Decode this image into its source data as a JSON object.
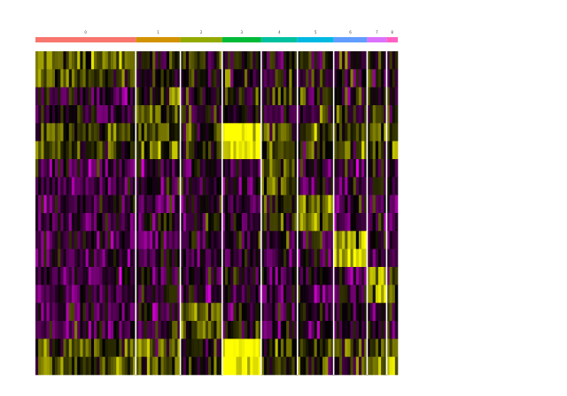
{
  "chart_data": {
    "type": "heatmap",
    "title": "",
    "xlabel": "",
    "ylabel": "",
    "legend": "none",
    "clusters": [
      {
        "label": "0",
        "color": "#F8766D",
        "cells": 36
      },
      {
        "label": "1",
        "color": "#D39200",
        "cells": 16
      },
      {
        "label": "2",
        "color": "#93AA00",
        "cells": 15
      },
      {
        "label": "3",
        "color": "#00BA38",
        "cells": 14
      },
      {
        "label": "4",
        "color": "#00C19F",
        "cells": 13
      },
      {
        "label": "5",
        "color": "#00B9E3",
        "cells": 13
      },
      {
        "label": "6",
        "color": "#619CFF",
        "cells": 12
      },
      {
        "label": "7",
        "color": "#DB72FB",
        "cells": 7
      },
      {
        "label": "8",
        "color": "#FF61C3",
        "cells": 4
      }
    ],
    "genes": [
      "",
      "",
      "",
      "",
      "",
      "",
      "",
      "",
      "",
      "",
      "",
      "",
      "",
      "",
      "",
      "",
      "",
      ""
    ],
    "gene_marker_cluster": [
      0,
      0,
      1,
      1,
      3,
      3,
      4,
      4,
      5,
      5,
      6,
      6,
      7,
      7,
      2,
      2,
      8,
      8
    ],
    "values": [
      [
        0.9,
        0.0,
        0.0,
        0.0,
        0.0,
        0.0,
        0.0,
        0.1,
        0.0
      ],
      [
        0.9,
        0.0,
        0.0,
        0.0,
        0.0,
        0.0,
        0.0,
        0.1,
        0.0
      ],
      [
        -0.5,
        0.6,
        0.0,
        0.0,
        0.0,
        0.0,
        0.0,
        0.1,
        0.0
      ],
      [
        -0.5,
        0.6,
        0.0,
        0.0,
        0.0,
        0.0,
        0.0,
        0.1,
        0.0
      ],
      [
        0.6,
        0.6,
        0.3,
        2.5,
        0.6,
        0.6,
        0.6,
        0.6,
        0.6
      ],
      [
        0.6,
        0.6,
        0.3,
        2.5,
        0.6,
        0.6,
        0.6,
        0.6,
        0.6
      ],
      [
        -0.6,
        -0.4,
        -0.2,
        -0.5,
        0.7,
        -0.2,
        -0.6,
        -0.1,
        -0.5
      ],
      [
        -0.6,
        -0.4,
        -0.2,
        -0.5,
        0.7,
        -0.2,
        -0.6,
        -0.1,
        -0.5
      ],
      [
        -0.6,
        -0.5,
        -0.4,
        -0.5,
        0.3,
        1.2,
        -0.6,
        -0.4,
        -0.5
      ],
      [
        -0.6,
        -0.5,
        -0.4,
        -0.5,
        0.3,
        1.2,
        -0.6,
        -0.4,
        -0.5
      ],
      [
        -0.6,
        -0.5,
        -0.5,
        -0.5,
        -0.4,
        -0.3,
        1.8,
        -0.3,
        -0.5
      ],
      [
        -0.6,
        -0.5,
        -0.5,
        -0.5,
        -0.4,
        -0.3,
        1.8,
        -0.3,
        -0.5
      ],
      [
        -0.6,
        -0.5,
        -0.5,
        -0.5,
        -0.5,
        -0.5,
        -0.5,
        1.5,
        0.5
      ],
      [
        -0.6,
        -0.5,
        -0.5,
        -0.5,
        -0.5,
        -0.5,
        -0.5,
        1.5,
        0.5
      ],
      [
        -0.5,
        -0.4,
        0.9,
        -0.1,
        -0.4,
        -0.4,
        -0.4,
        -0.3,
        -0.2
      ],
      [
        -0.5,
        -0.4,
        0.9,
        -0.1,
        -0.4,
        -0.4,
        -0.4,
        -0.3,
        -0.2
      ],
      [
        0.6,
        0.6,
        0.1,
        2.5,
        0.6,
        0.6,
        0.6,
        0.6,
        2.0
      ],
      [
        0.6,
        0.6,
        0.1,
        2.5,
        0.6,
        0.6,
        0.6,
        0.6,
        2.0
      ]
    ],
    "color_scale": {
      "low": "#FF00FF",
      "mid": "#000000",
      "high": "#FFFF00",
      "min": -2.5,
      "max": 2.5
    }
  }
}
